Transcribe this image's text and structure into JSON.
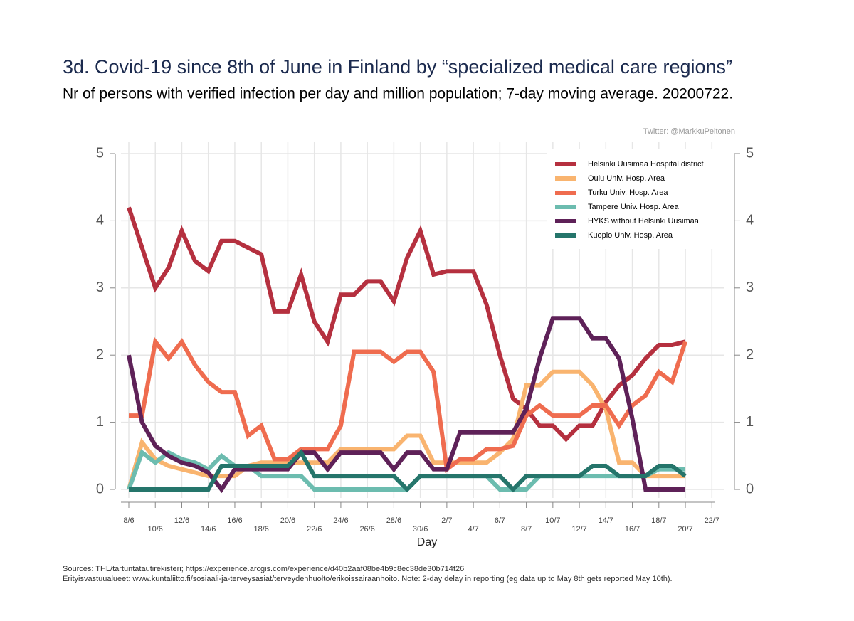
{
  "chart_data": {
    "type": "line",
    "title": "3d. Covid-19 since 8th of June in Finland by “specialized medical care regions”",
    "subtitle": "Nr of persons with verified infection per day and million population; 7-day moving average. 20200722.",
    "credit": "Twitter: @MarkkuPeltonen",
    "x_label": "Day",
    "sources": [
      "Sources: THL/tartuntatautirekisteri; https://experience.arcgis.com/experience/d40b2aaf08be4b9c8ec38de30b714f26",
      "Erityisvastuualueet: www.kuntaliitto.fi/sosiaali-ja-terveysasiat/terveydenhuolto/erikoissairaanhoito. Note: 2-day delay in reporting (eg data up to May 8th gets reported May 10th)."
    ],
    "categories": [
      "8/6",
      null,
      "10/6",
      null,
      "12/6",
      null,
      "14/6",
      null,
      "16/6",
      null,
      "18/6",
      null,
      "20/6",
      null,
      "22/6",
      null,
      "24/6",
      null,
      "26/6",
      null,
      "28/6",
      null,
      "30/6",
      null,
      "2/7",
      null,
      "4/7",
      null,
      "6/7",
      null,
      "8/7",
      null,
      "10/7",
      null,
      "12/7",
      null,
      "14/7",
      null,
      "16/7",
      null,
      "18/7",
      null,
      "20/7",
      null,
      "22/7"
    ],
    "ylim": [
      0,
      5
    ],
    "yticks": [
      0,
      1,
      2,
      3,
      4,
      5
    ],
    "y2lim": [
      0,
      5
    ],
    "y2ticks": [
      0,
      1,
      2,
      3,
      4,
      5
    ],
    "grid": true,
    "legend_position": "upper right",
    "series": [
      {
        "name": "Helsinki Uusimaa Hospital district",
        "color": "#b5303f",
        "values": [
          4.2,
          3.6,
          3.0,
          3.3,
          3.85,
          3.4,
          3.25,
          3.7,
          3.7,
          3.6,
          3.5,
          2.65,
          2.65,
          3.2,
          2.5,
          2.2,
          2.9,
          2.9,
          3.1,
          3.1,
          2.8,
          3.45,
          3.85,
          3.2,
          3.25,
          3.25,
          3.25,
          2.75,
          2.0,
          1.35,
          1.2,
          0.95,
          0.95,
          0.75,
          0.95,
          0.95,
          1.3,
          1.55,
          1.7,
          1.95,
          2.15,
          2.15,
          2.2,
          null,
          null
        ]
      },
      {
        "name": "Oulu Univ. Hosp. Area",
        "color": "#f9b46f",
        "values": [
          0,
          0.7,
          0.45,
          0.35,
          0.3,
          0.25,
          0.2,
          0.2,
          0.2,
          0.35,
          0.4,
          0.4,
          0.4,
          0.4,
          0.4,
          0.4,
          0.6,
          0.6,
          0.6,
          0.6,
          0.6,
          0.8,
          0.8,
          0.4,
          0.4,
          0.4,
          0.4,
          0.4,
          0.55,
          0.75,
          1.55,
          1.55,
          1.75,
          1.75,
          1.75,
          1.55,
          1.2,
          0.4,
          0.4,
          0.2,
          0.2,
          0.2,
          0.2,
          null,
          null
        ]
      },
      {
        "name": "Turku Univ. Hosp. Area",
        "color": "#ef6c4f",
        "values": [
          1.1,
          1.1,
          2.2,
          1.95,
          2.2,
          1.85,
          1.6,
          1.45,
          1.45,
          0.8,
          0.95,
          0.45,
          0.45,
          0.6,
          0.6,
          0.6,
          0.95,
          2.05,
          2.05,
          2.05,
          1.9,
          2.05,
          2.05,
          1.75,
          0.3,
          0.45,
          0.45,
          0.6,
          0.6,
          0.65,
          1.1,
          1.25,
          1.1,
          1.1,
          1.1,
          1.25,
          1.25,
          0.95,
          1.25,
          1.4,
          1.75,
          1.6,
          2.2,
          null,
          null
        ]
      },
      {
        "name": "Tampere Univ. Hosp. Area",
        "color": "#6cbcaf",
        "values": [
          0,
          0.55,
          0.4,
          0.55,
          0.45,
          0.4,
          0.3,
          0.5,
          0.35,
          0.35,
          0.2,
          0.2,
          0.2,
          0.2,
          0,
          0,
          0,
          0,
          0,
          0,
          0,
          0,
          0.2,
          0.2,
          0.2,
          0.2,
          0.2,
          0.2,
          0,
          0,
          0,
          0.2,
          0.2,
          0.2,
          0.2,
          0.2,
          0.2,
          0.2,
          0.2,
          0.2,
          0.3,
          0.3,
          0.3,
          null,
          null
        ]
      },
      {
        "name": "HYKS without Helsinki Uusimaa",
        "color": "#5e2158",
        "values": [
          2.0,
          1.0,
          0.65,
          0.5,
          0.4,
          0.35,
          0.25,
          0,
          0.3,
          0.3,
          0.3,
          0.3,
          0.3,
          0.55,
          0.55,
          0.3,
          0.55,
          0.55,
          0.55,
          0.55,
          0.3,
          0.55,
          0.55,
          0.3,
          0.3,
          0.85,
          0.85,
          0.85,
          0.85,
          0.85,
          1.2,
          1.95,
          2.55,
          2.55,
          2.55,
          2.25,
          2.25,
          1.95,
          1.05,
          0,
          0,
          0,
          0,
          null,
          null
        ]
      },
      {
        "name": "Kuopio Univ. Hosp. Area",
        "color": "#25756b",
        "values": [
          0,
          0,
          0,
          0,
          0,
          0,
          0,
          0.35,
          0.35,
          0.35,
          0.35,
          0.35,
          0.35,
          0.55,
          0.2,
          0.2,
          0.2,
          0.2,
          0.2,
          0.2,
          0.2,
          0,
          0.2,
          0.2,
          0.2,
          0.2,
          0.2,
          0.2,
          0.2,
          0,
          0.2,
          0.2,
          0.2,
          0.2,
          0.2,
          0.35,
          0.35,
          0.2,
          0.2,
          0.2,
          0.35,
          0.35,
          0.2,
          null,
          null
        ]
      }
    ]
  }
}
